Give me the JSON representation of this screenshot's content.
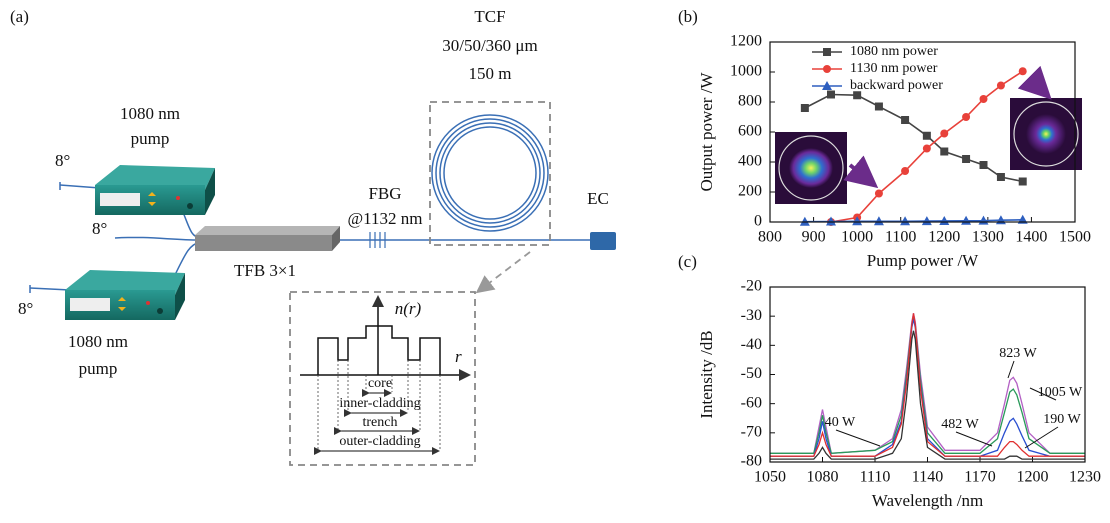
{
  "diagram": {
    "panel_label": "(a)",
    "pump_top": [
      "1080 nm",
      "pump"
    ],
    "pump_bottom": [
      "1080 nm",
      "pump"
    ],
    "angle_top": "8°",
    "angle_middle": "8°",
    "angle_bottom": "8°",
    "combiner": "TFB 3×1",
    "fbg": [
      "FBG",
      "@1132 nm"
    ],
    "fiber": [
      "TCF",
      "30/50/360 μm",
      "150 m"
    ],
    "end_cap": "EC",
    "profile": {
      "y_axis": "n(r)",
      "x_axis": "r",
      "regions": [
        "core",
        "inner-cladding",
        "trench",
        "outer-cladding"
      ]
    }
  },
  "chart_data": [
    {
      "type": "line",
      "panel_label": "(b)",
      "x_label": "Pump power /W",
      "y_label": "Output power /W",
      "x": [
        880,
        940,
        1000,
        1050,
        1110,
        1160,
        1200,
        1250,
        1290,
        1330,
        1380
      ],
      "xlim": [
        800,
        1500
      ],
      "xticks": [
        800,
        900,
        1000,
        1100,
        1200,
        1300,
        1400,
        1500
      ],
      "ylim": [
        0,
        1200
      ],
      "yticks": [
        0,
        200,
        400,
        600,
        800,
        1000,
        1200
      ],
      "legend": "upper left",
      "markers": true,
      "series": [
        {
          "name": "1080 nm power",
          "color": "#444444",
          "marker": "square",
          "values": [
            760,
            850,
            845,
            770,
            680,
            575,
            470,
            420,
            380,
            300,
            270
          ]
        },
        {
          "name": "1130 nm power",
          "color": "#e8413a",
          "marker": "circle",
          "values": [
            null,
            0,
            30,
            190,
            340,
            490,
            590,
            700,
            820,
            910,
            1005
          ]
        },
        {
          "name": "backward power",
          "color": "#2e5fbf",
          "marker": "triangle",
          "values": [
            2,
            3,
            5,
            5,
            5,
            6,
            7,
            8,
            9,
            12,
            15
          ]
        }
      ]
    },
    {
      "type": "line",
      "panel_label": "(c)",
      "x_label": "Wavelength /nm",
      "y_label": "Intensity /dB",
      "x": [
        1050,
        1075,
        1078,
        1080,
        1082,
        1085,
        1110,
        1120,
        1125,
        1128,
        1131,
        1132,
        1133,
        1136,
        1140,
        1150,
        1170,
        1180,
        1184,
        1187,
        1189,
        1191,
        1194,
        1198,
        1210,
        1230
      ],
      "xlim": [
        1050,
        1230
      ],
      "xticks": [
        1050,
        1080,
        1110,
        1140,
        1170,
        1200,
        1230
      ],
      "ylim": [
        -80,
        -20
      ],
      "yticks": [
        -80,
        -70,
        -60,
        -50,
        -40,
        -30,
        -20
      ],
      "markers": false,
      "series": [
        {
          "name": "823 W",
          "color": "#b360c4",
          "values": [
            -77,
            -77,
            -68,
            -62,
            -68,
            -77,
            -76,
            -72,
            -62,
            -48,
            -32,
            -29,
            -32,
            -50,
            -68,
            -76,
            -76,
            -70,
            -60,
            -52,
            -51,
            -53,
            -60,
            -70,
            -77,
            -77
          ]
        },
        {
          "name": "1005 W",
          "color": "#2a9a5a",
          "values": [
            -77,
            -77,
            -70,
            -64,
            -70,
            -77,
            -76,
            -73,
            -64,
            -50,
            -33,
            -30,
            -33,
            -52,
            -70,
            -77,
            -77,
            -72,
            -63,
            -56,
            -55,
            -57,
            -63,
            -72,
            -77,
            -77
          ]
        },
        {
          "name": "482 W",
          "color": "#2a4fd0",
          "values": [
            -78,
            -78,
            -72,
            -66,
            -72,
            -78,
            -78,
            -74,
            -66,
            -52,
            -34,
            -31,
            -34,
            -54,
            -72,
            -78,
            -78,
            -76,
            -70,
            -66,
            -65,
            -67,
            -71,
            -76,
            -78,
            -78
          ]
        },
        {
          "name": "190 W",
          "color": "#e03030",
          "values": [
            -78,
            -78,
            -74,
            -70,
            -74,
            -78,
            -78,
            -75,
            -67,
            -53,
            -33,
            -29,
            -33,
            -55,
            -73,
            -78,
            -78,
            -78,
            -75,
            -73,
            -73,
            -74,
            -76,
            -78,
            -78,
            -78
          ]
        },
        {
          "name": "40 W",
          "color": "#333333",
          "values": [
            -79,
            -79,
            -77,
            -75,
            -77,
            -79,
            -79,
            -77,
            -72,
            -58,
            -38,
            -35,
            -38,
            -60,
            -75,
            -79,
            -79,
            -79,
            -79,
            -78,
            -78,
            -78,
            -79,
            -79,
            -79,
            -79
          ]
        }
      ]
    }
  ]
}
